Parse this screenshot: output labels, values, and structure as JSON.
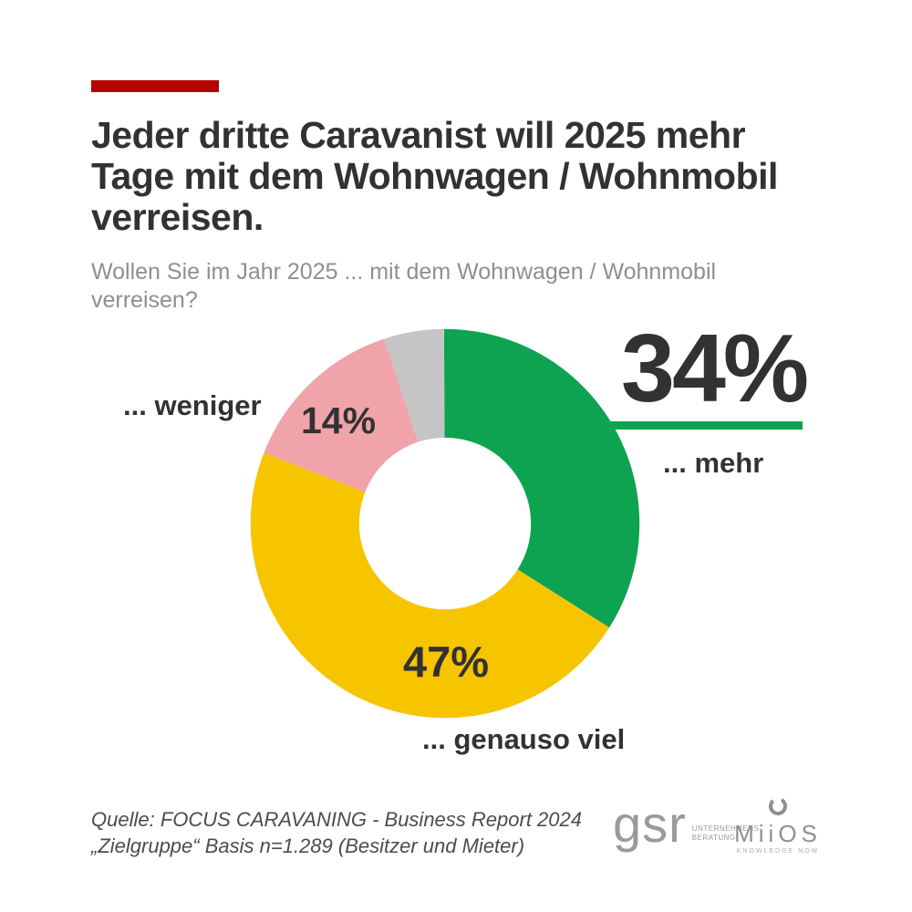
{
  "accent": {
    "bar_color": "#b20300"
  },
  "header": {
    "title_lines": [
      "Jeder dritte Caravanist will 2025 mehr",
      "Tage mit dem Wohnwagen / Wohnmobil",
      "verreisen."
    ],
    "subtitle_lines": [
      "Wollen Sie im Jahr 2025 ... mit dem Wohnwagen / Wohnmobil",
      "verreisen?"
    ]
  },
  "chart_data": {
    "type": "pie",
    "donut": true,
    "title": "Wollen Sie im Jahr 2025 ... mit dem Wohnwagen / Wohnmobil verreisen?",
    "start_angle_deg": 0,
    "direction": "clockwise",
    "legend_position": "none",
    "segments": [
      {
        "label": "... mehr",
        "value": 34,
        "pct_label": "34%",
        "color": "#0da351"
      },
      {
        "label": "... genauso viel",
        "value": 47,
        "pct_label": "47%",
        "color": "#f6c500"
      },
      {
        "label": "... weniger",
        "value": 14,
        "pct_label": "14%",
        "color": "#f0a3a9"
      },
      {
        "label": "",
        "value": 5,
        "pct_label": "",
        "color": "#c5c5c5"
      }
    ]
  },
  "footer": {
    "source_line1": "Quelle: FOCUS CARAVANING - Business Report 2024",
    "source_line2": "„Zielgruppe“ Basis n=1.289 (Besitzer und Mieter)",
    "logos": {
      "gsr": "gsr",
      "gsr_sub": "UNTERNEHMENS-\nBERATUNG.",
      "miios": "MiiOS",
      "miios_sub": "KNOWLEDGE NOW"
    }
  }
}
